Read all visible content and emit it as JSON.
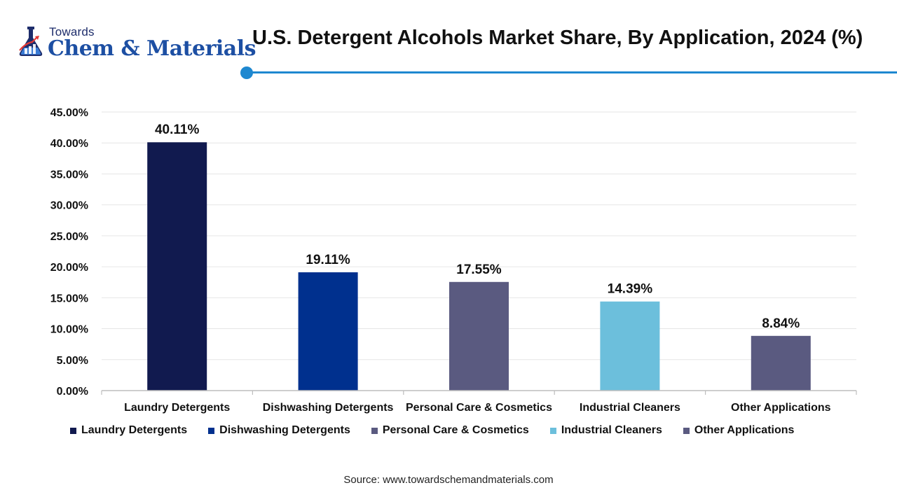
{
  "logo": {
    "top_text": "Towards",
    "main_text": "Chem & Materials",
    "icon": "flask-icon"
  },
  "header": {
    "title": "U.S. Detergent Alcohols Market Share, By Application, 2024 (%)"
  },
  "chart_data": {
    "type": "bar",
    "title": "U.S. Detergent Alcohols Market Share, By Application, 2024 (%)",
    "categories": [
      "Laundry Detergents",
      "Dishwashing Detergents",
      "Personal Care & Cosmetics",
      "Industrial Cleaners",
      "Other Applications"
    ],
    "values": [
      40.11,
      19.11,
      17.55,
      14.39,
      8.84
    ],
    "data_labels": [
      "40.11%",
      "19.11%",
      "17.55%",
      "14.39%",
      "8.84%"
    ],
    "colors": [
      "#111a4f",
      "#00308e",
      "#5a5a80",
      "#6cbfdc",
      "#5a5a80"
    ],
    "ylim": [
      0,
      45
    ],
    "yticks": [
      "0.00%",
      "5.00%",
      "10.00%",
      "15.00%",
      "20.00%",
      "25.00%",
      "30.00%",
      "35.00%",
      "40.00%",
      "45.00%"
    ],
    "xlabel": "",
    "ylabel": "",
    "grid": true,
    "legend_position": "bottom"
  },
  "legend": {
    "items": [
      {
        "label": "Laundry Detergents",
        "color": "#111a4f"
      },
      {
        "label": "Dishwashing Detergents",
        "color": "#00308e"
      },
      {
        "label": "Personal Care & Cosmetics",
        "color": "#5a5a80"
      },
      {
        "label": "Industrial Cleaners",
        "color": "#6cbfdc"
      },
      {
        "label": "Other Applications",
        "color": "#5a5a80"
      }
    ]
  },
  "footer": {
    "source": "Source: www.towardschemandmaterials.com"
  }
}
